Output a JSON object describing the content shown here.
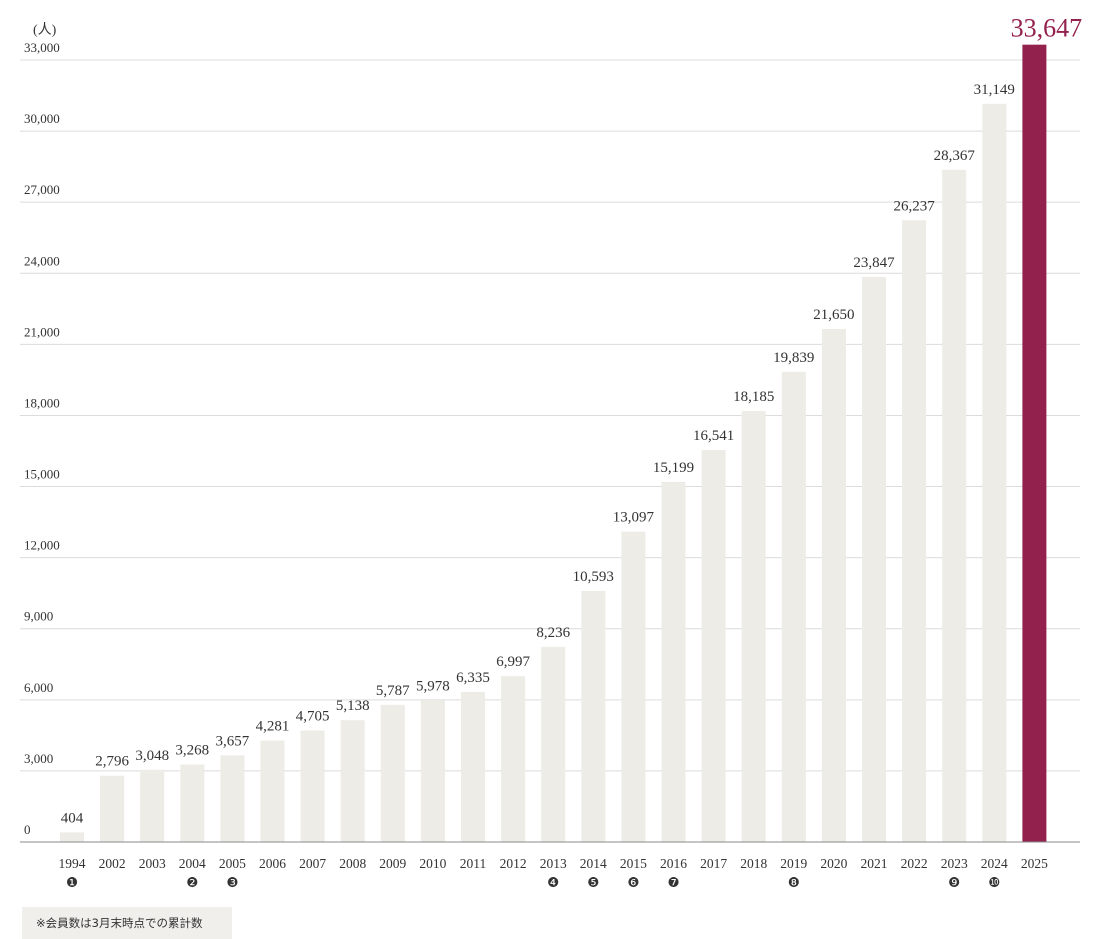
{
  "chart_data": {
    "type": "bar",
    "unit_label": "(人)",
    "categories": [
      "1994",
      "2002",
      "2003",
      "2004",
      "2005",
      "2006",
      "2007",
      "2008",
      "2009",
      "2010",
      "2011",
      "2012",
      "2013",
      "2014",
      "2015",
      "2016",
      "2017",
      "2018",
      "2019",
      "2020",
      "2021",
      "2022",
      "2023",
      "2024",
      "2025"
    ],
    "values": [
      404,
      2796,
      3048,
      3268,
      3657,
      4281,
      4705,
      5138,
      5787,
      5978,
      6335,
      6997,
      8236,
      10593,
      13097,
      15199,
      16541,
      18185,
      19839,
      21650,
      23847,
      26237,
      28367,
      31149,
      33647
    ],
    "value_labels": [
      "404",
      "2,796",
      "3,048",
      "3,268",
      "3,657",
      "4,281",
      "4,705",
      "5,138",
      "5,787",
      "5,978",
      "6,335",
      "6,997",
      "8,236",
      "10,593",
      "13,097",
      "15,199",
      "16,541",
      "18,185",
      "19,839",
      "21,650",
      "23,847",
      "26,237",
      "28,367",
      "31,149",
      "33,647"
    ],
    "markers": [
      "❶",
      "",
      "",
      "❷",
      "❸",
      "",
      "",
      "",
      "",
      "",
      "",
      "",
      "❹",
      "❺",
      "❻",
      "❼",
      "",
      "",
      "❽",
      "",
      "",
      "",
      "❾",
      "❿",
      ""
    ],
    "ylim": [
      0,
      33000
    ],
    "yticks": [
      0,
      3000,
      6000,
      9000,
      12000,
      15000,
      18000,
      21000,
      24000,
      27000,
      30000,
      33000
    ],
    "ytick_labels": [
      "0",
      "3,000",
      "6,000",
      "9,000",
      "12,000",
      "15,000",
      "18,000",
      "21,000",
      "24,000",
      "27,000",
      "30,000",
      "33,000"
    ],
    "highlight_index": 24,
    "grid": true
  },
  "colors": {
    "bar": "#edece6",
    "highlight_bar": "#93214e",
    "grid": "#dcdcdc",
    "axis": "#888888",
    "marker": "#3c3c3c"
  },
  "note": "※会員数は3月末時点での累計数"
}
